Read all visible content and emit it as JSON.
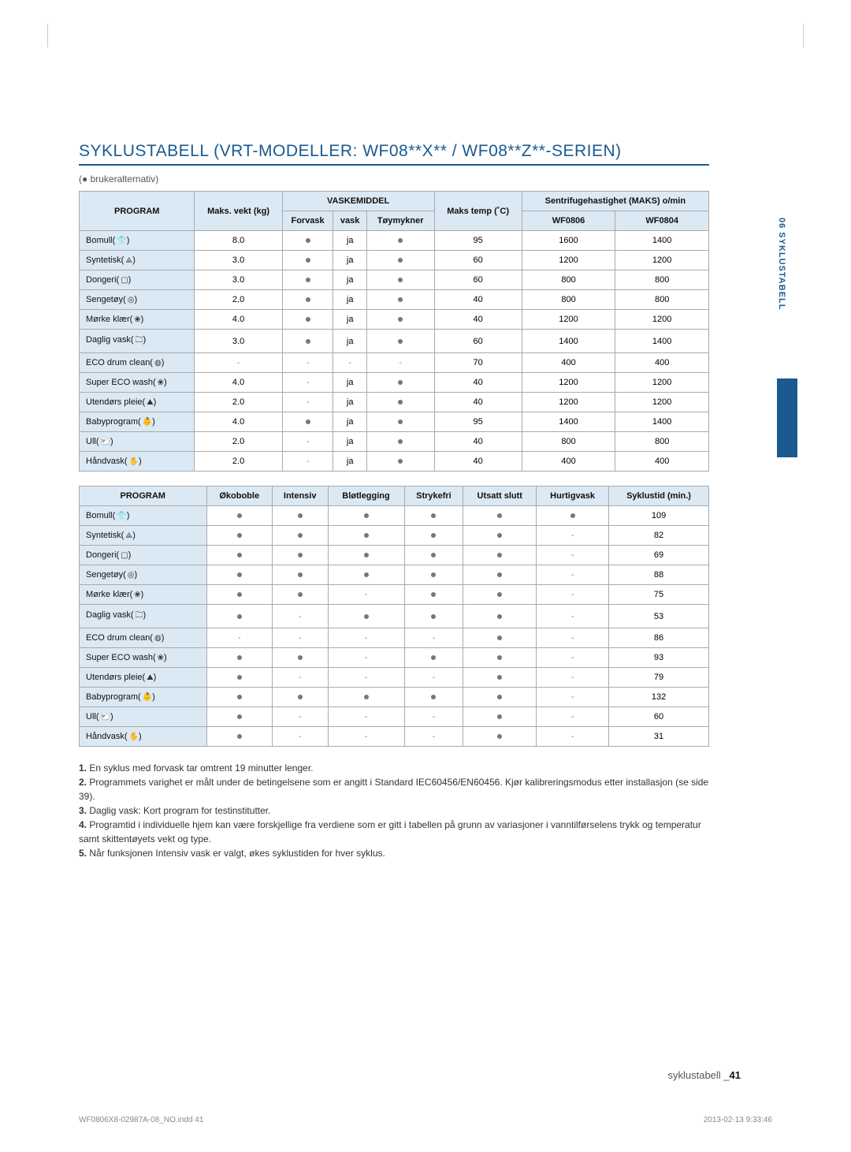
{
  "title": "SYKLUSTABELL (VRT-MODELLER: WF08**X** / WF08**Z**-SERIEN)",
  "legend": "(● brukeralternativ)",
  "sidebar_label": "06 SYKLUSTABELL",
  "table1": {
    "header": {
      "program": "PROGRAM",
      "maks_vekt": "Maks. vekt (kg)",
      "vaskemiddel": "VASKEMIDDEL",
      "forvask": "Forvask",
      "vask": "vask",
      "toymykner": "Tøymykner",
      "maks_temp": "Maks temp (˚C)",
      "spin": "Sentrifugehastighet (MAKS) o/min",
      "wf0806": "WF0806",
      "wf0804": "WF0804"
    },
    "rows": [
      {
        "name": "Bomull",
        "icon": "👕",
        "kg": "8.0",
        "forvask": "dot",
        "vask": "ja",
        "toy": "dot",
        "temp": "95",
        "a": "1600",
        "b": "1400"
      },
      {
        "name": "Syntetisk",
        "icon": "⟁",
        "kg": "3.0",
        "forvask": "dot",
        "vask": "ja",
        "toy": "dot",
        "temp": "60",
        "a": "1200",
        "b": "1200"
      },
      {
        "name": "Dongeri",
        "icon": "▢",
        "kg": "3.0",
        "forvask": "dot",
        "vask": "ja",
        "toy": "dot",
        "temp": "60",
        "a": "800",
        "b": "800"
      },
      {
        "name": "Sengetøy",
        "icon": "◎",
        "kg": "2.0",
        "forvask": "dot",
        "vask": "ja",
        "toy": "dot",
        "temp": "40",
        "a": "800",
        "b": "800"
      },
      {
        "name": "Mørke klær",
        "icon": "❀",
        "kg": "4.0",
        "forvask": "dot",
        "vask": "ja",
        "toy": "dot",
        "temp": "40",
        "a": "1200",
        "b": "1200"
      },
      {
        "name": "Daglig vask",
        "icon": "🗀",
        "kg": "3.0",
        "forvask": "dot",
        "vask": "ja",
        "toy": "dot",
        "temp": "60",
        "a": "1400",
        "b": "1400"
      },
      {
        "name": "ECO drum clean",
        "icon": "◍",
        "kg": "-",
        "forvask": "-",
        "vask": "-",
        "toy": "-",
        "temp": "70",
        "a": "400",
        "b": "400"
      },
      {
        "name": "Super ECO wash",
        "icon": "❀",
        "kg": "4.0",
        "forvask": "-",
        "vask": "ja",
        "toy": "dot",
        "temp": "40",
        "a": "1200",
        "b": "1200"
      },
      {
        "name": "Utendørs pleie",
        "icon": "⛰",
        "kg": "2.0",
        "forvask": "-",
        "vask": "ja",
        "toy": "dot",
        "temp": "40",
        "a": "1200",
        "b": "1200"
      },
      {
        "name": "Babyprogram",
        "icon": "👶",
        "kg": "4.0",
        "forvask": "dot",
        "vask": "ja",
        "toy": "dot",
        "temp": "95",
        "a": "1400",
        "b": "1400"
      },
      {
        "name": "Ull",
        "icon": "🐑",
        "kg": "2.0",
        "forvask": "-",
        "vask": "ja",
        "toy": "dot",
        "temp": "40",
        "a": "800",
        "b": "800"
      },
      {
        "name": "Håndvask",
        "icon": "✋",
        "kg": "2.0",
        "forvask": "-",
        "vask": "ja",
        "toy": "dot",
        "temp": "40",
        "a": "400",
        "b": "400"
      }
    ]
  },
  "table2": {
    "header": {
      "program": "PROGRAM",
      "okoboble": "Økoboble",
      "intensiv": "Intensiv",
      "blot": "Bløtlegging",
      "strykefri": "Strykefri",
      "utsatt": "Utsatt slutt",
      "hurtig": "Hurtigvask",
      "syklustid": "Syklustid (min.)"
    },
    "rows": [
      {
        "name": "Bomull",
        "icon": "👕",
        "c": [
          "dot",
          "dot",
          "dot",
          "dot",
          "dot",
          "dot",
          "109"
        ]
      },
      {
        "name": "Syntetisk",
        "icon": "⟁",
        "c": [
          "dot",
          "dot",
          "dot",
          "dot",
          "dot",
          "-",
          "82"
        ]
      },
      {
        "name": "Dongeri",
        "icon": "▢",
        "c": [
          "dot",
          "dot",
          "dot",
          "dot",
          "dot",
          "-",
          "69"
        ]
      },
      {
        "name": "Sengetøy",
        "icon": "◎",
        "c": [
          "dot",
          "dot",
          "dot",
          "dot",
          "dot",
          "-",
          "88"
        ]
      },
      {
        "name": "Mørke klær",
        "icon": "❀",
        "c": [
          "dot",
          "dot",
          "-",
          "dot",
          "dot",
          "-",
          "75"
        ]
      },
      {
        "name": "Daglig vask",
        "icon": "🗀",
        "c": [
          "dot",
          "-",
          "dot",
          "dot",
          "dot",
          "-",
          "53"
        ]
      },
      {
        "name": "ECO drum clean",
        "icon": "◍",
        "c": [
          "-",
          "-",
          "-",
          "-",
          "dot",
          "-",
          "86"
        ]
      },
      {
        "name": "Super ECO wash",
        "icon": "❀",
        "c": [
          "dot",
          "dot",
          "-",
          "dot",
          "dot",
          "-",
          "93"
        ]
      },
      {
        "name": "Utendørs pleie",
        "icon": "⛰",
        "c": [
          "dot",
          "-",
          "-",
          "-",
          "dot",
          "-",
          "79"
        ]
      },
      {
        "name": "Babyprogram",
        "icon": "👶",
        "c": [
          "dot",
          "dot",
          "dot",
          "dot",
          "dot",
          "-",
          "132"
        ]
      },
      {
        "name": "Ull",
        "icon": "🐑",
        "c": [
          "dot",
          "-",
          "-",
          "-",
          "dot",
          "-",
          "60"
        ]
      },
      {
        "name": "Håndvask",
        "icon": "✋",
        "c": [
          "dot",
          "-",
          "-",
          "-",
          "dot",
          "-",
          "31"
        ]
      }
    ]
  },
  "notes": [
    "En syklus med forvask tar omtrent 19 minutter lenger.",
    "Programmets varighet er målt under de betingelsene som er angitt i Standard IEC60456/EN60456. Kjør kalibreringsmodus etter installasjon (se side 39).",
    "Daglig vask: Kort program for testinstitutter.",
    "Programtid i individuelle hjem kan være forskjellige fra verdiene som er gitt i tabellen på grunn av variasjoner i vanntilførselens trykk og temperatur samt skittentøyets vekt og type.",
    "Når funksjonen Intensiv vask er valgt, økes syklustiden for hver syklus."
  ],
  "footer_text": "syklustabell _",
  "footer_page": "41",
  "print_file": "WF0806X8-02987A-08_NO.indd   41",
  "print_time": "2013-02-13      9:33:46"
}
